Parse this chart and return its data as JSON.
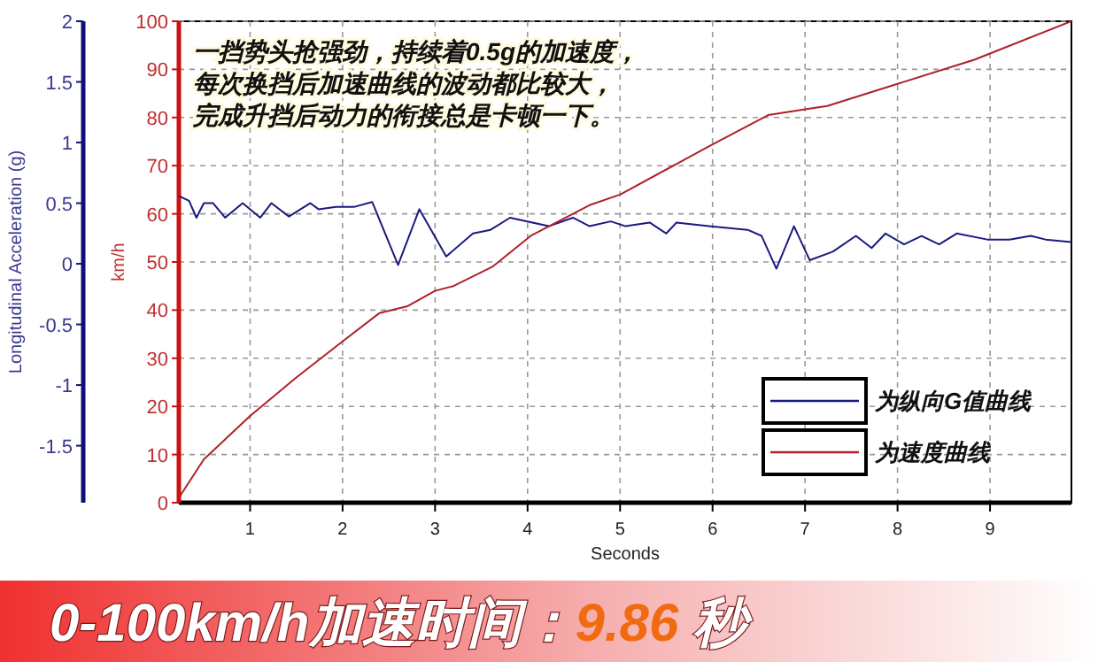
{
  "chart_data": {
    "type": "line",
    "xlabel": "Seconds",
    "ylabel": "km/h",
    "y2label": "Longitudinal Acceleration (g)",
    "xlim": [
      0.23,
      9.88
    ],
    "xticks": [
      1,
      2,
      3,
      4,
      5,
      6,
      7,
      8,
      9
    ],
    "ylim": [
      0,
      100
    ],
    "yticks": [
      0,
      10,
      20,
      30,
      40,
      50,
      60,
      70,
      80,
      90,
      100
    ],
    "y2lim": [
      -1.97,
      2
    ],
    "y2ticks": [
      -1.5,
      -1,
      -0.5,
      0,
      0.5,
      1,
      1.5,
      2
    ],
    "grid": true,
    "legend": "bottom right",
    "line_style": "solid",
    "marker": "none",
    "series": [
      {
        "name": "为纵向G值曲线",
        "color": "#1a1a80",
        "axis": "y2",
        "x": [
          0.23,
          0.34,
          0.42,
          0.5,
          0.6,
          0.73,
          0.92,
          1.11,
          1.23,
          1.42,
          1.65,
          1.74,
          1.93,
          2.13,
          2.32,
          2.6,
          2.83,
          3.12,
          3.41,
          3.6,
          3.81,
          4.23,
          4.49,
          4.67,
          4.9,
          5.06,
          5.32,
          5.5,
          5.61,
          5.96,
          6.38,
          6.53,
          6.69,
          6.88,
          7.05,
          7.3,
          7.55,
          7.72,
          7.87,
          8.07,
          8.26,
          8.45,
          8.64,
          8.97,
          9.21,
          9.44,
          9.6,
          9.88
        ],
        "values": [
          0.56,
          0.52,
          0.38,
          0.5,
          0.5,
          0.38,
          0.5,
          0.38,
          0.5,
          0.39,
          0.5,
          0.45,
          0.47,
          0.47,
          0.51,
          -0.01,
          0.45,
          0.06,
          0.25,
          0.28,
          0.38,
          0.31,
          0.38,
          0.31,
          0.35,
          0.31,
          0.34,
          0.25,
          0.34,
          0.31,
          0.28,
          0.23,
          -0.04,
          0.31,
          0.03,
          0.1,
          0.23,
          0.13,
          0.25,
          0.16,
          0.23,
          0.16,
          0.25,
          0.2,
          0.2,
          0.23,
          0.2,
          0.18
        ]
      },
      {
        "name": "为速度曲线",
        "color": "#b0202a",
        "x": [
          0.23,
          0.5,
          1,
          1.5,
          2,
          2.4,
          2.7,
          3,
          3.2,
          3.62,
          4.04,
          4.67,
          5,
          5.96,
          6.6,
          6.97,
          7.24,
          8,
          8.83,
          9.88
        ],
        "values": [
          1,
          9,
          18,
          26,
          33.5,
          39.4,
          40.8,
          44,
          45,
          49,
          55.5,
          61.8,
          64,
          74,
          80.5,
          81.6,
          82.4,
          87,
          92,
          100
        ]
      }
    ],
    "annotations": [
      "一挡势头抢强劲，持续着0.5g的加速度，",
      "每次换挡后加速曲线的波动都比较大，",
      "完成升挡后动力的衔接总是卡顿一下。",
      "0-100km/h加速时间：9.86  秒"
    ]
  }
}
